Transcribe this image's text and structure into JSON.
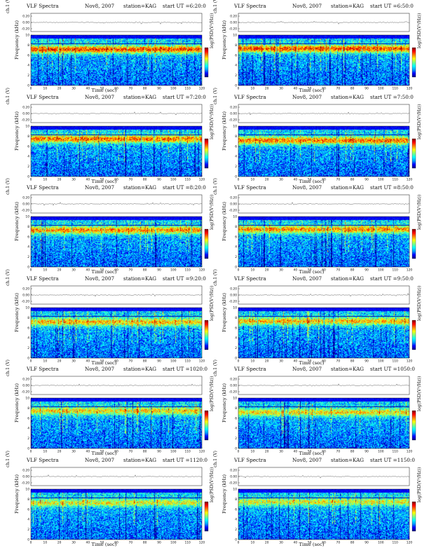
{
  "header_common": {
    "title": "VLF Spectra",
    "date": "Nov8, 2007",
    "station": "station=KAG",
    "start_prefix": "start  UT ="
  },
  "axis_labels": {
    "ch": "ch.1 (V)",
    "frequency": "Frequency  (kHz)",
    "time": "Time  (sec)",
    "colorbar": "log(PSD(V²/Hz))"
  },
  "panels": [
    {
      "start_ut": "6:20:0"
    },
    {
      "start_ut": "6:50:0"
    },
    {
      "start_ut": "7:20:0"
    },
    {
      "start_ut": "7:50:0"
    },
    {
      "start_ut": "8:20:0"
    },
    {
      "start_ut": "8:50:0"
    },
    {
      "start_ut": "9:20:0"
    },
    {
      "start_ut": "9:50:0"
    },
    {
      "start_ut": "1020:0"
    },
    {
      "start_ut": "1050:0"
    },
    {
      "start_ut": "1120:0"
    },
    {
      "start_ut": "1150:0"
    }
  ],
  "chart_data": {
    "type": "heatmap",
    "x_ticks": [
      0,
      10,
      20,
      30,
      40,
      50,
      60,
      70,
      80,
      90,
      100,
      110,
      120
    ],
    "y_ticks": [
      0,
      2,
      4,
      6,
      8,
      10
    ],
    "ch_ticks": [
      "0.20",
      "0.00",
      "-0.20"
    ],
    "xlim": [
      0,
      120
    ],
    "ylim": [
      0,
      10
    ],
    "colormap": [
      "#00007f",
      "#0000ff",
      "#00a0ff",
      "#00ffff",
      "#80ff80",
      "#ffff00",
      "#ff8000",
      "#ff0000",
      "#7f0000"
    ]
  }
}
